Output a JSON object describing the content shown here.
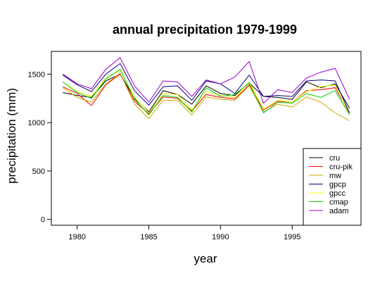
{
  "chart_data": {
    "type": "line",
    "title": "annual precipitation 1979-1999",
    "xlabel": "year",
    "ylabel": "precipitation (mm)",
    "xlim": [
      1978.2,
      1999.8
    ],
    "ylim": [
      -60,
      1735
    ],
    "x_ticks": [
      1980,
      1985,
      1990,
      1995
    ],
    "y_ticks": [
      0,
      500,
      1000,
      1500
    ],
    "legend_position": "bottom-right",
    "grid": false,
    "x": [
      1979,
      1980,
      1981,
      1982,
      1983,
      1984,
      1985,
      1986,
      1987,
      1988,
      1989,
      1990,
      1991,
      1992,
      1993,
      1994,
      1995,
      1996,
      1997,
      1998,
      1999
    ],
    "series": [
      {
        "name": "cru",
        "color": "#000000",
        "values": [
          1310,
          1280,
          1260,
          1430,
          1500,
          1250,
          1110,
          1330,
          1290,
          1190,
          1380,
          1300,
          1280,
          1410,
          1270,
          1260,
          1240,
          1420,
          1360,
          1400,
          1150
        ]
      },
      {
        "name": "cru-pik",
        "color": "#ff0000",
        "values": [
          1370,
          1300,
          1175,
          1390,
          1500,
          1220,
          1090,
          1265,
          1250,
          1120,
          1290,
          1260,
          1245,
          1390,
          1130,
          1220,
          1210,
          1330,
          1340,
          1360,
          1100
        ]
      },
      {
        "name": "mw",
        "color": "#ccaa00",
        "values": [
          1360,
          1260,
          1210,
          1400,
          1510,
          1190,
          1040,
          1230,
          1230,
          1080,
          1265,
          1240,
          1230,
          1380,
          1110,
          1190,
          1160,
          1265,
          1210,
          1100,
          1020
        ]
      },
      {
        "name": "gpcp",
        "color": "#000080",
        "values": [
          1490,
          1390,
          1320,
          1500,
          1610,
          1330,
          1180,
          1370,
          1380,
          1230,
          1430,
          1400,
          1300,
          1490,
          1270,
          1280,
          1270,
          1430,
          1440,
          1430,
          1100
        ]
      },
      {
        "name": "gpcc",
        "color": "#ffff00",
        "values": [
          1420,
          1320,
          1270,
          1460,
          1540,
          1260,
          1100,
          1300,
          1290,
          1130,
          1320,
          1280,
          1260,
          1420,
          1140,
          1230,
          1210,
          1320,
          1370,
          1390,
          1080
        ]
      },
      {
        "name": "cmap",
        "color": "#00cc00",
        "values": [
          1420,
          1310,
          1250,
          1450,
          1550,
          1240,
          1080,
          1280,
          1260,
          1110,
          1360,
          1270,
          1290,
          1410,
          1100,
          1210,
          1200,
          1300,
          1260,
          1330,
          1080
        ]
      },
      {
        "name": "adam",
        "color": "#9900cc",
        "values": [
          1500,
          1400,
          1350,
          1550,
          1670,
          1380,
          1210,
          1430,
          1420,
          1270,
          1440,
          1400,
          1470,
          1630,
          1200,
          1340,
          1310,
          1460,
          1520,
          1560,
          1240
        ]
      }
    ]
  }
}
